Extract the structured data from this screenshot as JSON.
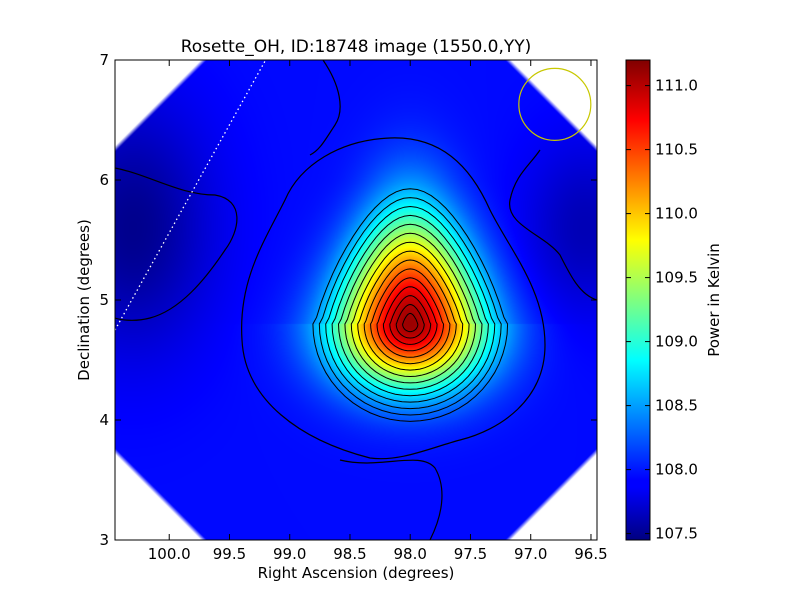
{
  "chart_data": {
    "type": "heatmap",
    "title": "Rosette_OH, ID:18748 image (1550.0,YY)",
    "xlabel": "Right Ascension (degrees)",
    "ylabel": "Declination (degrees)",
    "xlim": [
      100.45,
      96.45
    ],
    "ylim": [
      3,
      7
    ],
    "x_ticks": [
      100.0,
      99.5,
      99.0,
      98.5,
      98.0,
      97.5,
      97.0,
      96.5
    ],
    "x_tick_labels": [
      "100.0",
      "99.5",
      "99.0",
      "98.5",
      "98.0",
      "97.5",
      "97.0",
      "96.5"
    ],
    "y_ticks": [
      3,
      4,
      5,
      6,
      7
    ],
    "y_tick_labels": [
      "3",
      "4",
      "5",
      "6",
      "7"
    ],
    "colorbar": {
      "label": "Power in Kelvin",
      "range": [
        107.45,
        111.2
      ],
      "ticks": [
        107.5,
        108.0,
        108.5,
        109.0,
        109.5,
        110.0,
        110.5,
        111.0
      ],
      "tick_labels": [
        "107.5",
        "108.0",
        "108.5",
        "109.0",
        "109.5",
        "110.0",
        "110.5",
        "111.0"
      ],
      "colormap": "jet"
    },
    "peak": {
      "ra": 98.0,
      "dec": 4.8,
      "value": 111.1
    },
    "background_level": 107.95,
    "beam_circle": {
      "ra": 96.8,
      "dec": 6.63,
      "radius_deg": 0.3,
      "color": "#c8c800"
    },
    "dotted_line": {
      "from": [
        100.45,
        4.75
      ],
      "to": [
        99.2,
        7.0
      ],
      "color": "#ffffff"
    },
    "contour_color": "#000000",
    "grid": false
  }
}
